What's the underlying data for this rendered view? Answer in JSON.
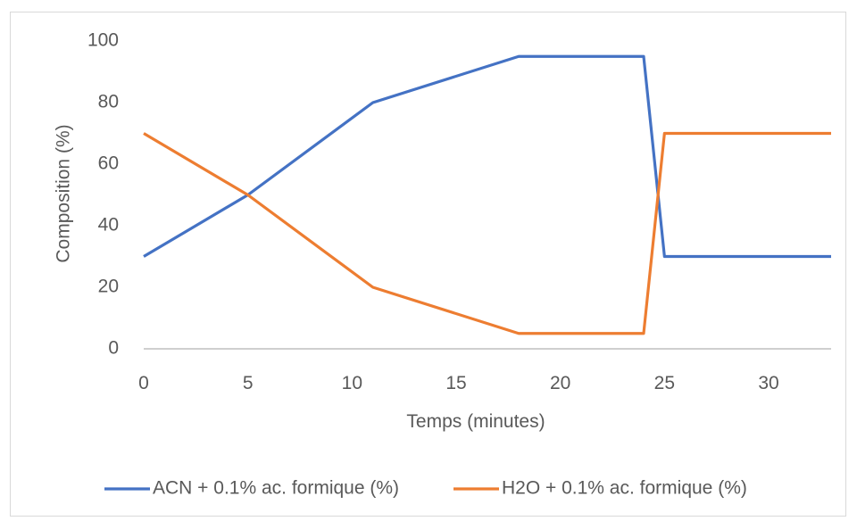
{
  "chart_data": {
    "type": "line",
    "xlabel": "Temps (minutes)",
    "ylabel": "Composition (%)",
    "xlim": [
      0,
      33
    ],
    "ylim": [
      0,
      100
    ],
    "x_ticks": [
      "0",
      "5",
      "10",
      "15",
      "20",
      "25",
      "30"
    ],
    "y_ticks": [
      "0",
      "20",
      "40",
      "60",
      "80",
      "100"
    ],
    "legend_position": "bottom",
    "grid": false,
    "series": [
      {
        "name": "ACN + 0.1% ac. formique (%)",
        "color": "#4472C4",
        "x": [
          0,
          5,
          11,
          18,
          24,
          25,
          33
        ],
        "y": [
          30,
          50,
          80,
          95,
          95,
          30,
          30
        ]
      },
      {
        "name": "H2O + 0.1% ac. formique (%)",
        "color": "#ED7D31",
        "x": [
          0,
          5,
          11,
          18,
          24,
          25,
          33
        ],
        "y": [
          70,
          50,
          20,
          5,
          5,
          70,
          70
        ]
      }
    ]
  }
}
